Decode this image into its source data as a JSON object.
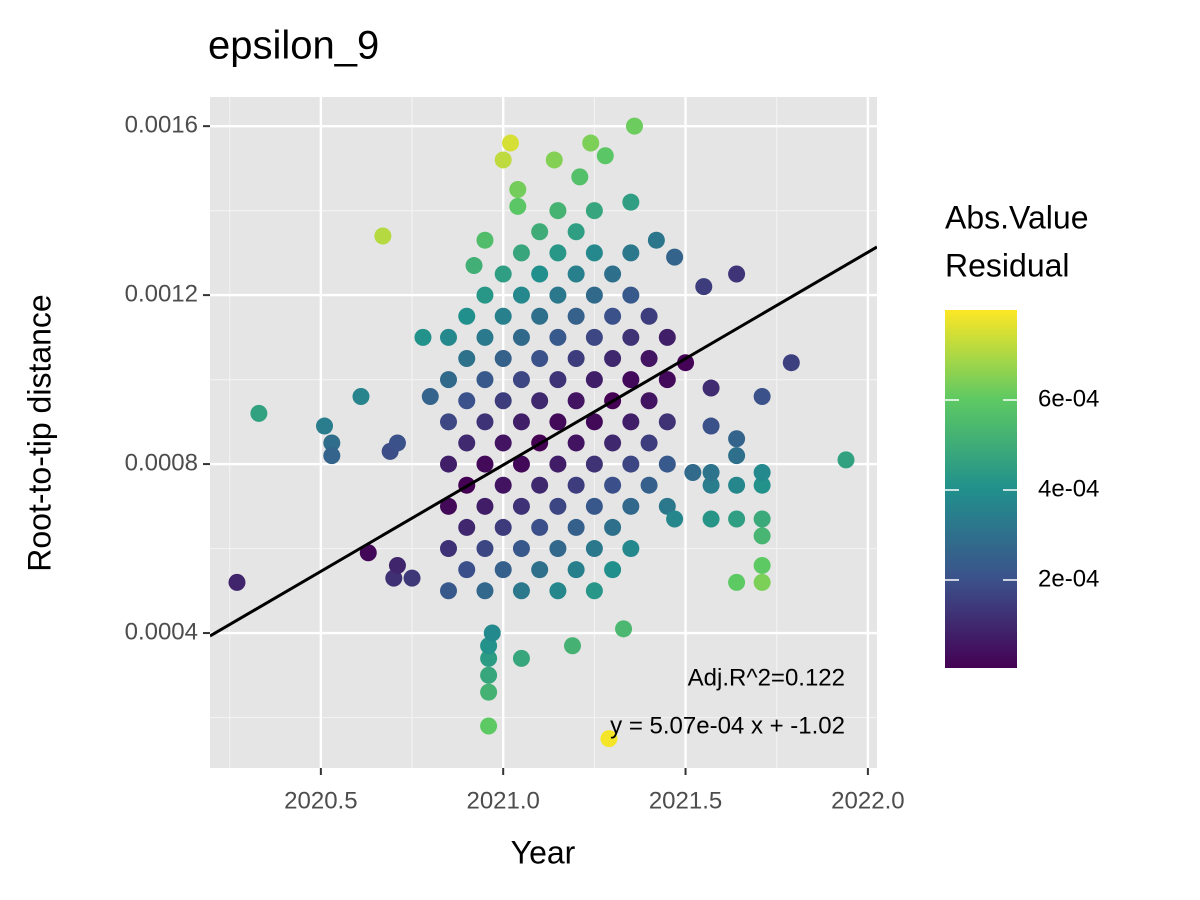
{
  "chart_data": {
    "type": "scatter",
    "title": "epsilon_9",
    "x_label": "Year",
    "y_label": "Root-to-tip distance",
    "xlim": [
      2020.196,
      2022.025
    ],
    "xticks": [
      2020.5,
      {
        "value": 2021,
        "label": "2021.0"
      },
      2021.5,
      {
        "value": 2022,
        "label": "2022.0"
      }
    ],
    "ylim": [
      8.05e-05,
      0.001669
    ],
    "yticks": [
      0.0004,
      0.0008,
      0.0012,
      0.0016
    ],
    "grid": true,
    "fit_line": {
      "x": [
        2020.196,
        2022.025
      ],
      "y": [
        0.000393,
        0.001314
      ],
      "color": "#000000"
    },
    "annotations": [
      "Adj.R^2=0.122",
      "y = 5.07e-04 x + -1.02"
    ],
    "legend_title": [
      "Abs.Value",
      "Residual"
    ],
    "color_scale": {
      "lim": [
        4.4e-06,
        0.0008
      ],
      "ticks": [
        {
          "value": 0.0002,
          "label": "2e-04"
        },
        {
          "value": 0.0004,
          "label": "4e-04"
        },
        {
          "value": 0.0006,
          "label": "6e-04"
        }
      ],
      "palette": [
        "#440154",
        "#3b528b",
        "#21908c",
        "#5dc963",
        "#fde725"
      ]
    },
    "points": [
      {
        "x": 2020.85,
        "y": 0.0005,
        "residual": 0.000223
      },
      {
        "x": 2020.85,
        "y": 0.0006,
        "residual": 0.000123
      },
      {
        "x": 2020.85,
        "y": 0.0007,
        "residual": 2.3e-05
      },
      {
        "x": 2020.85,
        "y": 0.0008,
        "residual": 7.7e-05
      },
      {
        "x": 2020.85,
        "y": 0.0009,
        "residual": 0.000177
      },
      {
        "x": 2020.85,
        "y": 0.001,
        "residual": 0.000277
      },
      {
        "x": 2020.85,
        "y": 0.0011,
        "residual": 0.000377
      },
      {
        "x": 2020.95,
        "y": 0.0005,
        "residual": 0.000273
      },
      {
        "x": 2020.95,
        "y": 0.0006,
        "residual": 0.000173
      },
      {
        "x": 2020.95,
        "y": 0.0007,
        "residual": 7.3e-05
      },
      {
        "x": 2020.95,
        "y": 0.0008,
        "residual": 2.7e-05
      },
      {
        "x": 2020.95,
        "y": 0.0009,
        "residual": 0.000127
      },
      {
        "x": 2020.95,
        "y": 0.001,
        "residual": 0.000227
      },
      {
        "x": 2020.95,
        "y": 0.0011,
        "residual": 0.000327
      },
      {
        "x": 2020.95,
        "y": 0.0012,
        "residual": 0.000427
      },
      {
        "x": 2021.05,
        "y": 0.0005,
        "residual": 0.000323
      },
      {
        "x": 2021.05,
        "y": 0.0006,
        "residual": 0.000223
      },
      {
        "x": 2021.05,
        "y": 0.0007,
        "residual": 0.000123
      },
      {
        "x": 2021.05,
        "y": 0.0008,
        "residual": 2.3e-05
      },
      {
        "x": 2021.05,
        "y": 0.0009,
        "residual": 7.7e-05
      },
      {
        "x": 2021.05,
        "y": 0.001,
        "residual": 0.000177
      },
      {
        "x": 2021.05,
        "y": 0.0011,
        "residual": 0.000277
      },
      {
        "x": 2021.05,
        "y": 0.0012,
        "residual": 0.000377
      },
      {
        "x": 2021.05,
        "y": 0.0013,
        "residual": 0.000477
      },
      {
        "x": 2021.15,
        "y": 0.0005,
        "residual": 0.000374
      },
      {
        "x": 2021.15,
        "y": 0.0006,
        "residual": 0.000274
      },
      {
        "x": 2021.15,
        "y": 0.0007,
        "residual": 0.000174
      },
      {
        "x": 2021.15,
        "y": 0.0008,
        "residual": 7.4e-05
      },
      {
        "x": 2021.15,
        "y": 0.0009,
        "residual": 2.6e-05
      },
      {
        "x": 2021.15,
        "y": 0.001,
        "residual": 0.000126
      },
      {
        "x": 2021.15,
        "y": 0.0011,
        "residual": 0.000226
      },
      {
        "x": 2021.15,
        "y": 0.0012,
        "residual": 0.000326
      },
      {
        "x": 2021.15,
        "y": 0.0013,
        "residual": 0.000426
      },
      {
        "x": 2021.15,
        "y": 0.0014,
        "residual": 0.000526
      },
      {
        "x": 2021.25,
        "y": 0.0005,
        "residual": 0.000424
      },
      {
        "x": 2021.25,
        "y": 0.0006,
        "residual": 0.000324
      },
      {
        "x": 2021.25,
        "y": 0.0007,
        "residual": 0.000224
      },
      {
        "x": 2021.25,
        "y": 0.0008,
        "residual": 0.000124
      },
      {
        "x": 2021.25,
        "y": 0.0009,
        "residual": 2.4e-05
      },
      {
        "x": 2021.25,
        "y": 0.001,
        "residual": 7.6e-05
      },
      {
        "x": 2021.25,
        "y": 0.0011,
        "residual": 0.000176
      },
      {
        "x": 2021.25,
        "y": 0.0012,
        "residual": 0.000276
      },
      {
        "x": 2021.25,
        "y": 0.0013,
        "residual": 0.000376
      },
      {
        "x": 2021.25,
        "y": 0.0014,
        "residual": 0.000476
      },
      {
        "x": 2021.35,
        "y": 0.0006,
        "residual": 0.000375
      },
      {
        "x": 2021.35,
        "y": 0.0007,
        "residual": 0.000275
      },
      {
        "x": 2021.35,
        "y": 0.0008,
        "residual": 0.000175
      },
      {
        "x": 2021.35,
        "y": 0.0009,
        "residual": 7.5e-05
      },
      {
        "x": 2021.35,
        "y": 0.001,
        "residual": 2.5e-05
      },
      {
        "x": 2021.35,
        "y": 0.0011,
        "residual": 0.000125
      },
      {
        "x": 2021.35,
        "y": 0.0012,
        "residual": 0.000225
      },
      {
        "x": 2021.35,
        "y": 0.0013,
        "residual": 0.000325
      },
      {
        "x": 2021.45,
        "y": 0.0007,
        "residual": 0.000325
      },
      {
        "x": 2021.45,
        "y": 0.0008,
        "residual": 0.000225
      },
      {
        "x": 2021.45,
        "y": 0.0009,
        "residual": 0.000125
      },
      {
        "x": 2021.45,
        "y": 0.001,
        "residual": 2.5e-05
      },
      {
        "x": 2021.45,
        "y": 0.0011,
        "residual": 7.5e-05
      },
      {
        "x": 2020.9,
        "y": 0.00055,
        "residual": 0.000198
      },
      {
        "x": 2020.9,
        "y": 0.00065,
        "residual": 9.8e-05
      },
      {
        "x": 2020.9,
        "y": 0.00075,
        "residual": 2e-06
      },
      {
        "x": 2020.9,
        "y": 0.00085,
        "residual": 0.000102
      },
      {
        "x": 2020.9,
        "y": 0.00095,
        "residual": 0.000202
      },
      {
        "x": 2020.9,
        "y": 0.00105,
        "residual": 0.000302
      },
      {
        "x": 2020.9,
        "y": 0.00115,
        "residual": 0.000402
      },
      {
        "x": 2021.0,
        "y": 0.00055,
        "residual": 0.000248
      },
      {
        "x": 2021.0,
        "y": 0.00065,
        "residual": 0.000148
      },
      {
        "x": 2021.0,
        "y": 0.00075,
        "residual": 4.8e-05
      },
      {
        "x": 2021.0,
        "y": 0.00085,
        "residual": 5.2e-05
      },
      {
        "x": 2021.0,
        "y": 0.00095,
        "residual": 0.000152
      },
      {
        "x": 2021.0,
        "y": 0.00105,
        "residual": 0.000252
      },
      {
        "x": 2021.0,
        "y": 0.00115,
        "residual": 0.000352
      },
      {
        "x": 2021.0,
        "y": 0.00125,
        "residual": 0.000452
      },
      {
        "x": 2021.1,
        "y": 0.00055,
        "residual": 0.000299
      },
      {
        "x": 2021.1,
        "y": 0.00065,
        "residual": 0.000199
      },
      {
        "x": 2021.1,
        "y": 0.00075,
        "residual": 9.9e-05
      },
      {
        "x": 2021.1,
        "y": 0.00085,
        "residual": 1e-06
      },
      {
        "x": 2021.1,
        "y": 0.00095,
        "residual": 0.000101
      },
      {
        "x": 2021.1,
        "y": 0.00105,
        "residual": 0.000201
      },
      {
        "x": 2021.1,
        "y": 0.00115,
        "residual": 0.000301
      },
      {
        "x": 2021.1,
        "y": 0.00125,
        "residual": 0.000401
      },
      {
        "x": 2021.1,
        "y": 0.00135,
        "residual": 0.000501
      },
      {
        "x": 2021.2,
        "y": 0.00055,
        "residual": 0.000349
      },
      {
        "x": 2021.2,
        "y": 0.00065,
        "residual": 0.000249
      },
      {
        "x": 2021.2,
        "y": 0.00075,
        "residual": 0.000149
      },
      {
        "x": 2021.2,
        "y": 0.00085,
        "residual": 4.9e-05
      },
      {
        "x": 2021.2,
        "y": 0.00095,
        "residual": 5.1e-05
      },
      {
        "x": 2021.2,
        "y": 0.00105,
        "residual": 0.000151
      },
      {
        "x": 2021.2,
        "y": 0.00115,
        "residual": 0.000251
      },
      {
        "x": 2021.2,
        "y": 0.00125,
        "residual": 0.000351
      },
      {
        "x": 2021.2,
        "y": 0.00135,
        "residual": 0.000451
      },
      {
        "x": 2021.3,
        "y": 0.00055,
        "residual": 0.000399
      },
      {
        "x": 2021.3,
        "y": 0.00065,
        "residual": 0.000299
      },
      {
        "x": 2021.3,
        "y": 0.00075,
        "residual": 0.000199
      },
      {
        "x": 2021.3,
        "y": 0.00085,
        "residual": 9.9e-05
      },
      {
        "x": 2021.3,
        "y": 0.00095,
        "residual": 1e-06
      },
      {
        "x": 2021.3,
        "y": 0.00105,
        "residual": 0.000101
      },
      {
        "x": 2021.3,
        "y": 0.00115,
        "residual": 0.000201
      },
      {
        "x": 2021.3,
        "y": 0.00125,
        "residual": 0.000301
      },
      {
        "x": 2021.4,
        "y": 0.00075,
        "residual": 0.000249
      },
      {
        "x": 2021.4,
        "y": 0.00085,
        "residual": 0.000149
      },
      {
        "x": 2021.4,
        "y": 0.00095,
        "residual": 4.9e-05
      },
      {
        "x": 2021.4,
        "y": 0.00105,
        "residual": 5.1e-05
      },
      {
        "x": 2021.4,
        "y": 0.00115,
        "residual": 0.000151
      },
      {
        "x": 2020.27,
        "y": 0.00052,
        "residual": 9e-05
      },
      {
        "x": 2020.33,
        "y": 0.00092,
        "residual": 0.00046
      },
      {
        "x": 2020.67,
        "y": 0.00134,
        "residual": 0.00071
      },
      {
        "x": 2020.51,
        "y": 0.00089,
        "residual": 0.00034
      },
      {
        "x": 2020.53,
        "y": 0.00085,
        "residual": 0.00029
      },
      {
        "x": 2020.53,
        "y": 0.00082,
        "residual": 0.00026
      },
      {
        "x": 2020.61,
        "y": 0.00096,
        "residual": 0.00036
      },
      {
        "x": 2020.63,
        "y": 0.00059,
        "residual": 2e-05
      },
      {
        "x": 2020.69,
        "y": 0.00083,
        "residual": 0.00019
      },
      {
        "x": 2020.71,
        "y": 0.00085,
        "residual": 0.0002
      },
      {
        "x": 2021.02,
        "y": 0.00156,
        "residual": 0.00075
      },
      {
        "x": 2021.36,
        "y": 0.0016,
        "residual": 0.00062
      },
      {
        "x": 2021.29,
        "y": 0.00015,
        "residual": 0.00079
      },
      {
        "x": 2020.96,
        "y": 0.00018,
        "residual": 0.0006
      },
      {
        "x": 2021.94,
        "y": 0.00081,
        "residual": 0.00046
      },
      {
        "x": 2021.79,
        "y": 0.00104,
        "residual": 0.00016
      },
      {
        "x": 2021.64,
        "y": 0.00125,
        "residual": 0.00013
      },
      {
        "x": 2021.71,
        "y": 0.00096,
        "residual": 0.0002
      },
      {
        "x": 2021.64,
        "y": 0.00052,
        "residual": 0.0006
      },
      {
        "x": 2021.71,
        "y": 0.00052,
        "residual": 0.00064
      },
      {
        "x": 2021.71,
        "y": 0.00056,
        "residual": 0.0006
      },
      {
        "x": 2021.71,
        "y": 0.00063,
        "residual": 0.00053
      },
      {
        "x": 2021.71,
        "y": 0.00067,
        "residual": 0.00049
      },
      {
        "x": 2021.71,
        "y": 0.00075,
        "residual": 0.00041
      },
      {
        "x": 2021.71,
        "y": 0.00078,
        "residual": 0.00038
      },
      {
        "x": 2021.64,
        "y": 0.00067,
        "residual": 0.00045
      },
      {
        "x": 2021.64,
        "y": 0.00075,
        "residual": 0.00037
      },
      {
        "x": 2021.64,
        "y": 0.00082,
        "residual": 0.0003
      },
      {
        "x": 2021.64,
        "y": 0.00086,
        "residual": 0.00026
      },
      {
        "x": 2021.57,
        "y": 0.00067,
        "residual": 0.00042
      },
      {
        "x": 2021.57,
        "y": 0.00075,
        "residual": 0.00034
      },
      {
        "x": 2021.57,
        "y": 0.00078,
        "residual": 0.00031
      },
      {
        "x": 2021.57,
        "y": 0.00089,
        "residual": 0.0002
      },
      {
        "x": 2021.52,
        "y": 0.00078,
        "residual": 0.00028
      },
      {
        "x": 2021.47,
        "y": 0.00067,
        "residual": 0.00037
      },
      {
        "x": 2021.05,
        "y": 0.00034,
        "residual": 0.00048
      },
      {
        "x": 2021.19,
        "y": 0.00037,
        "residual": 0.00052
      },
      {
        "x": 2021.33,
        "y": 0.00041,
        "residual": 0.00054
      },
      {
        "x": 2020.96,
        "y": 0.00026,
        "residual": 0.00052
      },
      {
        "x": 2020.96,
        "y": 0.0003,
        "residual": 0.00048
      },
      {
        "x": 2020.96,
        "y": 0.00034,
        "residual": 0.00044
      },
      {
        "x": 2020.96,
        "y": 0.00037,
        "residual": 0.00041
      },
      {
        "x": 2020.97,
        "y": 0.0004,
        "residual": 0.00038
      },
      {
        "x": 2020.95,
        "y": 0.00133,
        "residual": 0.00056
      },
      {
        "x": 2020.92,
        "y": 0.00127,
        "residual": 0.00051
      },
      {
        "x": 2021.14,
        "y": 0.00152,
        "residual": 0.00065
      },
      {
        "x": 2021.24,
        "y": 0.00156,
        "residual": 0.00064
      },
      {
        "x": 2021.28,
        "y": 0.00153,
        "residual": 0.00059
      },
      {
        "x": 2021.21,
        "y": 0.00148,
        "residual": 0.00057
      },
      {
        "x": 2021.0,
        "y": 0.00152,
        "residual": 0.00072
      },
      {
        "x": 2021.04,
        "y": 0.00145,
        "residual": 0.00063
      },
      {
        "x": 2021.04,
        "y": 0.00141,
        "residual": 0.00059
      },
      {
        "x": 2021.35,
        "y": 0.00142,
        "residual": 0.00045
      },
      {
        "x": 2021.42,
        "y": 0.00133,
        "residual": 0.00032
      },
      {
        "x": 2021.47,
        "y": 0.00129,
        "residual": 0.00026
      },
      {
        "x": 2021.55,
        "y": 0.00122,
        "residual": 0.00015
      },
      {
        "x": 2021.5,
        "y": 0.00104,
        "residual": 1e-05
      },
      {
        "x": 2021.57,
        "y": 0.00098,
        "residual": 0.00011
      },
      {
        "x": 2020.78,
        "y": 0.0011,
        "residual": 0.00041
      },
      {
        "x": 2020.8,
        "y": 0.00096,
        "residual": 0.00026
      },
      {
        "x": 2020.75,
        "y": 0.00053,
        "residual": 0.00014
      },
      {
        "x": 2020.7,
        "y": 0.00053,
        "residual": 0.00012
      },
      {
        "x": 2020.71,
        "y": 0.00056,
        "residual": 9e-05
      }
    ]
  }
}
